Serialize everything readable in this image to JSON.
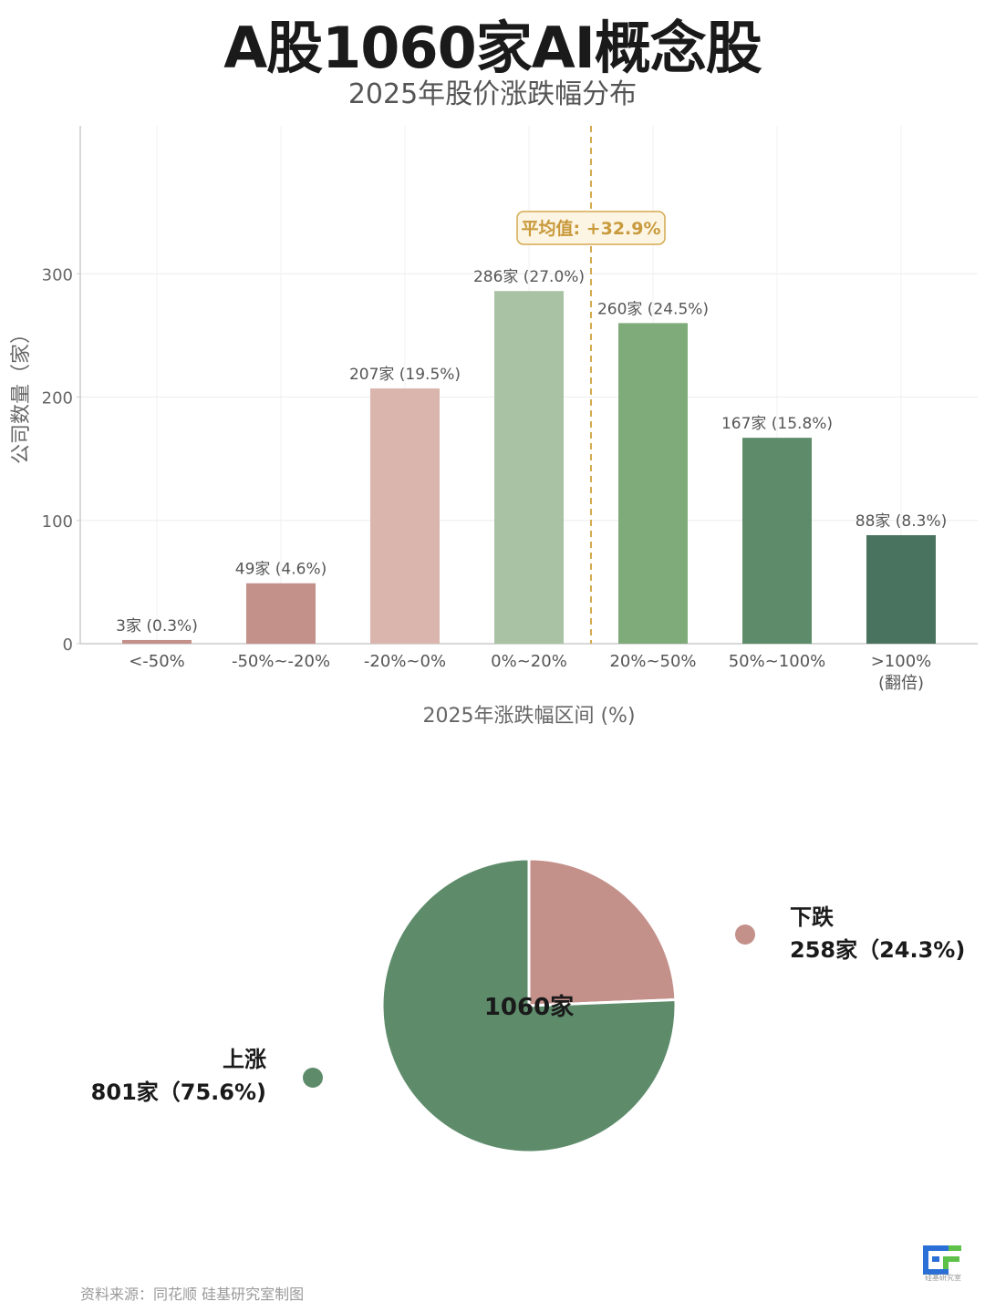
{
  "header": {
    "title": "A股1060家AI概念股",
    "subtitle": "2025年股价涨跌幅分布"
  },
  "chart_data": [
    {
      "type": "bar",
      "ylabel": "公司数量（家）",
      "xlabel": "2025年涨跌幅区间 (%)",
      "categories": [
        "<-50%",
        "-50%~-20%",
        "-20%~0%",
        "0%~20%",
        "20%~50%",
        "50%~100%",
        ">100%"
      ],
      "category_sublabels": [
        "",
        "",
        "",
        "",
        "",
        "",
        "(翻倍)"
      ],
      "values": [
        3,
        49,
        207,
        286,
        260,
        167,
        88
      ],
      "data_labels": [
        "3家 (0.3%)",
        "49家 (4.6%)",
        "207家 (19.5%)",
        "286家 (27.0%)",
        "260家 (24.5%)",
        "167家 (15.8%)",
        "88家 (8.3%)"
      ],
      "bar_colors": [
        "#c4908a",
        "#c4908a",
        "#d9b5ae",
        "#a8c2a3",
        "#7faa7a",
        "#5e8c6b",
        "#4a735f"
      ],
      "ylim": [
        0,
        420
      ],
      "yticks": [
        0,
        100,
        200,
        300
      ],
      "grid": true,
      "mean_line": {
        "label": "平均值: +32.9%",
        "value": 32.9,
        "color": "#d4aa50"
      }
    },
    {
      "type": "pie",
      "center_label": "1060家",
      "slices": [
        {
          "name": "下跌",
          "label": "258家（24.3%)",
          "value": 258,
          "percent": 24.3,
          "color": "#c4908a"
        },
        {
          "name": "上涨",
          "label": "801家（75.6%)",
          "value": 801,
          "percent": 75.6,
          "color": "#5e8c6b"
        }
      ]
    }
  ],
  "footer": {
    "source": "资料来源：同花顺   硅基研究室制图",
    "logo_text": "硅基研究室"
  }
}
